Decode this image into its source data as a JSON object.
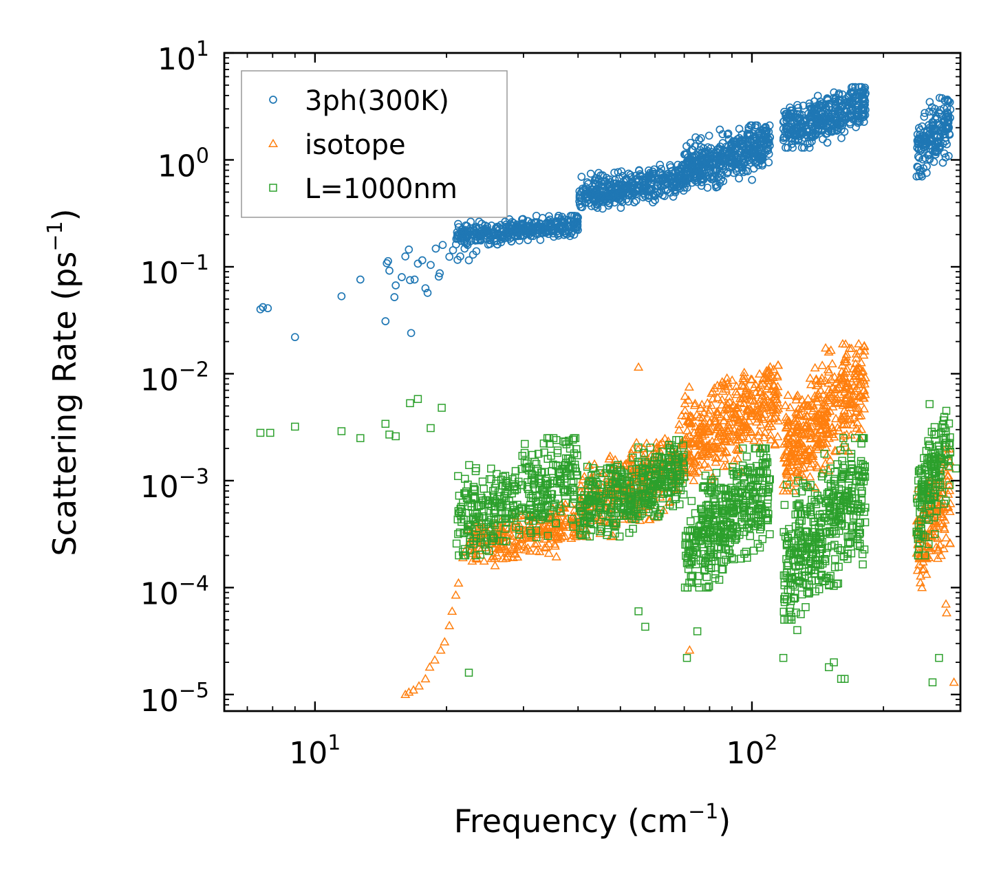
{
  "chart_data": {
    "type": "scatter",
    "title": "",
    "xlabel": {
      "base": "Frequency (cm",
      "sup": "−1",
      "tail": ")"
    },
    "ylabel": {
      "base": "Scattering Rate (ps",
      "sup": "−1",
      "tail": ")"
    },
    "xscale": "log",
    "yscale": "log",
    "xlim": [
      6.2,
      300
    ],
    "ylim": [
      7e-06,
      10
    ],
    "x_ticks": [
      {
        "value": 10,
        "base": "10",
        "exp": "1"
      },
      {
        "value": 100,
        "base": "10",
        "exp": "2"
      }
    ],
    "y_ticks": [
      {
        "value": 10,
        "base": "10",
        "exp": "1"
      },
      {
        "value": 1,
        "base": "10",
        "exp": "0"
      },
      {
        "value": 0.1,
        "base": "10",
        "exp": "−1"
      },
      {
        "value": 0.01,
        "base": "10",
        "exp": "−2"
      },
      {
        "value": 0.001,
        "base": "10",
        "exp": "−3"
      },
      {
        "value": 0.0001,
        "base": "10",
        "exp": "−4"
      },
      {
        "value": 1e-05,
        "base": "10",
        "exp": "−5"
      }
    ],
    "legend_position": "top-left",
    "series": [
      {
        "name": "3ph(300K)",
        "marker": "circle",
        "color": "#1f77b4",
        "points": [
          [
            7.5,
            0.04
          ],
          [
            7.6,
            0.042
          ],
          [
            7.8,
            0.041
          ],
          [
            9,
            0.022
          ],
          [
            11.5,
            0.053
          ],
          [
            12.7,
            0.076
          ],
          [
            14.5,
            0.031
          ],
          [
            14.6,
            0.108
          ],
          [
            14.7,
            0.113
          ],
          [
            14.8,
            0.092
          ],
          [
            15.2,
            0.052
          ],
          [
            15.3,
            0.067
          ],
          [
            15.8,
            0.08
          ],
          [
            16.1,
            0.125
          ],
          [
            16.4,
            0.145
          ],
          [
            16.5,
            0.075
          ],
          [
            16.6,
            0.024
          ],
          [
            16.9,
            0.076
          ],
          [
            17.2,
            0.107
          ],
          [
            17.6,
            0.115
          ],
          [
            17.9,
            0.063
          ],
          [
            18.1,
            0.057
          ],
          [
            18.4,
            0.104
          ],
          [
            18.9,
            0.148
          ],
          [
            19.2,
            0.081
          ],
          [
            19.3,
            0.087
          ],
          [
            19.6,
            0.16
          ],
          [
            20.3,
            0.124
          ],
          [
            20.7,
            0.143
          ],
          [
            21.2,
            0.116
          ],
          [
            21.5,
            0.125
          ],
          [
            22.0,
            0.148
          ],
          [
            22.5,
            0.115
          ],
          [
            23.0,
            0.13
          ],
          [
            23.4,
            0.14
          ]
        ],
        "clusters": [
          {
            "x": [
              21,
              40
            ],
            "y": [
              0.16,
              0.3
            ],
            "n": 340
          },
          {
            "x": [
              40,
              70
            ],
            "y": [
              0.35,
              0.9
            ],
            "n": 380
          },
          {
            "x": [
              70,
              110
            ],
            "y": [
              0.55,
              2.1
            ],
            "n": 420
          },
          {
            "x": [
              118,
              182
            ],
            "y": [
              1.3,
              4.8
            ],
            "n": 380
          },
          {
            "x": [
              238,
              285
            ],
            "y": [
              0.7,
              3.8
            ],
            "n": 170
          }
        ]
      },
      {
        "name": "isotope",
        "marker": "triangle",
        "color": "#ff7f0e",
        "points": [
          [
            16.1,
            1e-05
          ],
          [
            16.4,
            1.05e-05
          ],
          [
            16.8,
            1.1e-05
          ],
          [
            17.3,
            1.2e-05
          ],
          [
            17.9,
            1.4e-05
          ],
          [
            18.3,
            1.8e-05
          ],
          [
            18.8,
            2.1e-05
          ],
          [
            19.4,
            2.6e-05
          ],
          [
            19.8,
            3.1e-05
          ],
          [
            20.3,
            4.4e-05
          ],
          [
            20.6,
            6e-05
          ],
          [
            21.0,
            8.5e-05
          ],
          [
            21.3,
            0.00011
          ],
          [
            21.8,
            0.00019
          ],
          [
            22.3,
            0.00035
          ],
          [
            55,
            0.0115
          ],
          [
            72,
            2.6e-05
          ],
          [
            290,
            1.3e-05
          ],
          [
            278,
            7e-05
          ],
          [
            279,
            5.8e-05
          ]
        ],
        "clusters": [
          {
            "x": [
              22,
              40
            ],
            "y": [
              0.00016,
              0.0006
            ],
            "n": 260
          },
          {
            "x": [
              40,
              68
            ],
            "y": [
              0.0003,
              0.0025
            ],
            "n": 300
          },
          {
            "x": [
              68,
              115
            ],
            "y": [
              0.001,
              0.012
            ],
            "n": 400
          },
          {
            "x": [
              118,
              182
            ],
            "y": [
              0.0008,
              0.019
            ],
            "n": 420
          },
          {
            "x": [
              238,
              285
            ],
            "y": [
              0.0001,
              0.002
            ],
            "n": 150
          }
        ]
      },
      {
        "name": "L=1000nm",
        "marker": "square",
        "color": "#2ca02c",
        "points": [
          [
            7.5,
            0.0028
          ],
          [
            7.9,
            0.0028
          ],
          [
            9.0,
            0.0032
          ],
          [
            11.5,
            0.0029
          ],
          [
            12.7,
            0.0025
          ],
          [
            14.5,
            0.0034
          ],
          [
            14.8,
            0.0027
          ],
          [
            15.3,
            0.0026
          ],
          [
            16.5,
            0.0053
          ],
          [
            17.2,
            0.0058
          ],
          [
            18.4,
            0.0031
          ],
          [
            19.5,
            0.0048
          ],
          [
            22.5,
            1.6e-05
          ],
          [
            55,
            6e-05
          ],
          [
            57,
            4.3e-05
          ],
          [
            71,
            2.2e-05
          ],
          [
            75,
            3.9e-05
          ],
          [
            118,
            2.2e-05
          ],
          [
            127,
            4e-05
          ],
          [
            150,
            1.8e-05
          ],
          [
            154,
            2e-05
          ],
          [
            160,
            1.4e-05
          ],
          [
            163,
            1.4e-05
          ],
          [
            268,
            2.2e-05
          ],
          [
            259,
            1.3e-05
          ],
          [
            255,
            0.0052
          ],
          [
            293,
            0.0013
          ]
        ],
        "clusters": [
          {
            "x": [
              21,
              40
            ],
            "y": [
              0.0002,
              0.0025
            ],
            "n": 360
          },
          {
            "x": [
              40,
              70
            ],
            "y": [
              0.0003,
              0.0024
            ],
            "n": 380
          },
          {
            "x": [
              70,
              110
            ],
            "y": [
              0.0001,
              0.002
            ],
            "n": 420
          },
          {
            "x": [
              118,
              182
            ],
            "y": [
              5e-05,
              0.0025
            ],
            "n": 420
          },
          {
            "x": [
              238,
              285
            ],
            "y": [
              0.0002,
              0.0045
            ],
            "n": 170
          }
        ]
      }
    ]
  }
}
